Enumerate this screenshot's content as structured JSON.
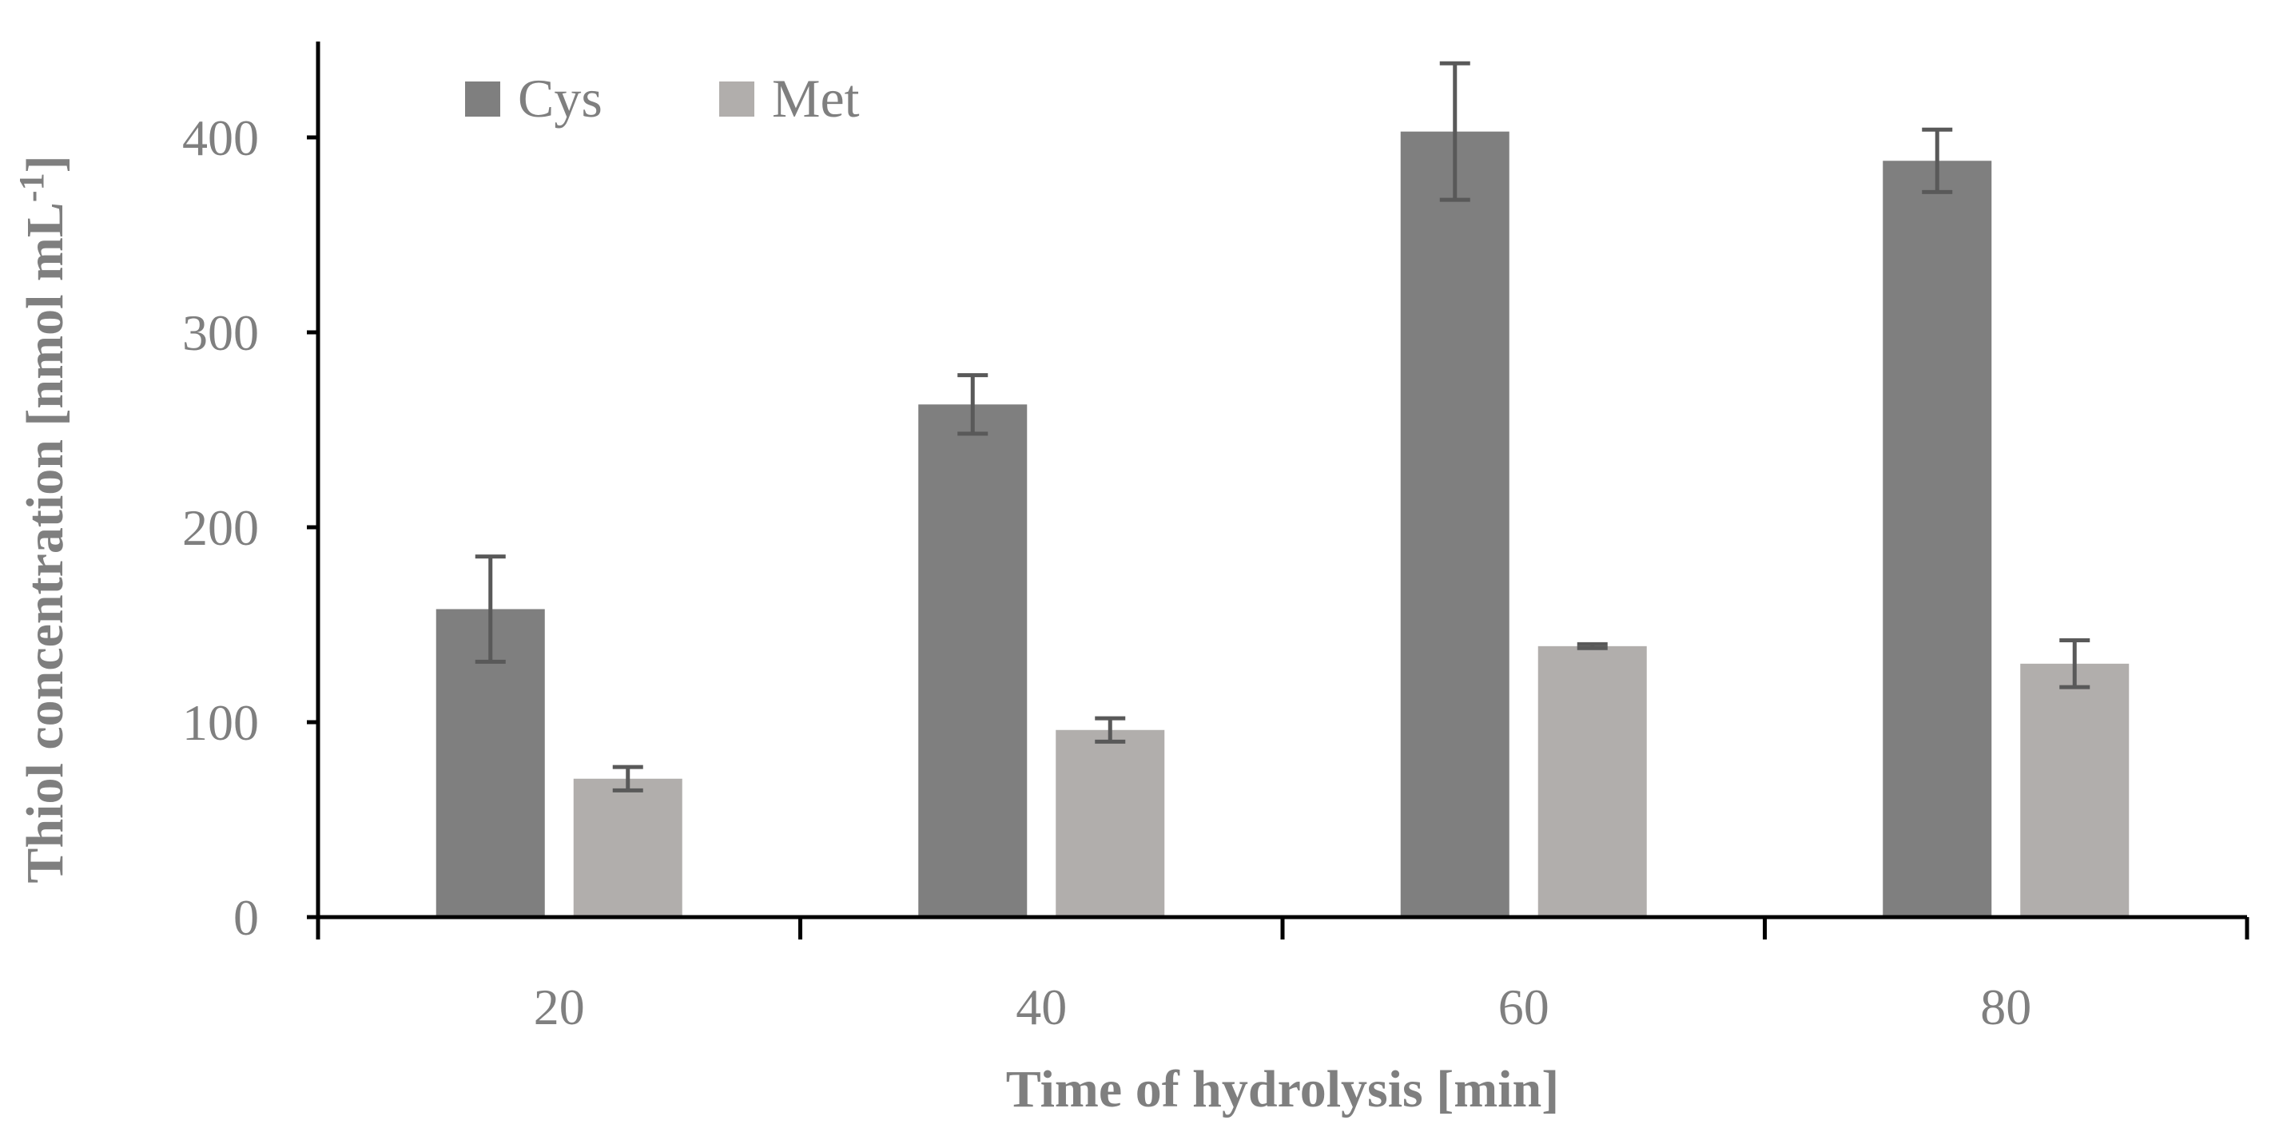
{
  "chart_data": {
    "type": "bar",
    "title": "",
    "xlabel": "Time of hydrolysis [min]",
    "ylabel_main": "Thiol concentration [nmol mL",
    "ylabel_sup": "-1",
    "ylabel_end": "]",
    "categories": [
      "20",
      "40",
      "60",
      "80"
    ],
    "ylim": [
      0,
      450
    ],
    "yticks": [
      0,
      100,
      200,
      300,
      400
    ],
    "grid": false,
    "legend_position": "top-left",
    "series": [
      {
        "name": "Cys",
        "color": "#7f7f7f",
        "values": [
          158,
          263,
          403,
          388
        ],
        "errors": [
          27,
          15,
          35,
          16
        ]
      },
      {
        "name": "Met",
        "color": "#b1aeac",
        "values": [
          71,
          96,
          139,
          130
        ],
        "errors": [
          6,
          6,
          1,
          12
        ]
      }
    ],
    "error_bar_color": "#595959",
    "axis_color": "#000000",
    "text_color": "#7f7f7f"
  }
}
